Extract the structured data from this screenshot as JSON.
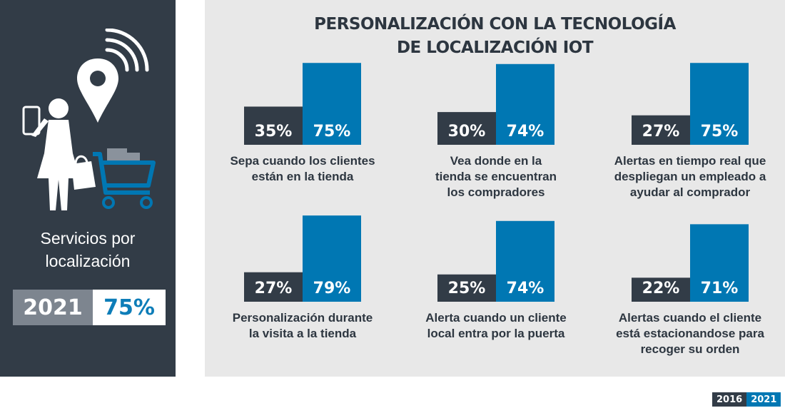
{
  "chart_data": {
    "type": "bar",
    "title": "PERSONALIZACIÓN CON LA TECNOLOGÍA DE LOCALIZACIÓN IOT",
    "title_lines": [
      "PERSONALIZACIÓN CON LA TECNOLOGÍA",
      "DE LOCALIZACIÓN IOT"
    ],
    "legend": [
      "2016",
      "2021"
    ],
    "legend_placement": "bottom-right",
    "colors": {
      "2016": "#323c47",
      "2021": "#0077b3"
    },
    "ylim": [
      0,
      100
    ],
    "grid": false,
    "groups": [
      {
        "label_lines": [
          "Sepa cuando los clientes",
          "están en la tienda"
        ],
        "values": [
          35,
          75
        ],
        "labels": [
          "35%",
          "75%"
        ]
      },
      {
        "label_lines": [
          "Vea donde en la",
          "tienda se encuentran",
          "los compradores"
        ],
        "values": [
          30,
          74
        ],
        "labels": [
          "30%",
          "74%"
        ]
      },
      {
        "label_lines": [
          "Alertas en tiempo real que",
          "despliegan un empleado a",
          "ayudar al comprador"
        ],
        "values": [
          27,
          75
        ],
        "labels": [
          "27%",
          "75%"
        ]
      },
      {
        "label_lines": [
          "Personalización durante",
          "la visita a la tienda"
        ],
        "values": [
          27,
          79
        ],
        "labels": [
          "27%",
          "79%"
        ]
      },
      {
        "label_lines": [
          "Alerta cuando un cliente",
          "local entra por la puerta"
        ],
        "values": [
          25,
          74
        ],
        "labels": [
          "25%",
          "74%"
        ]
      },
      {
        "label_lines": [
          "Alertas cuando el cliente",
          "está estacionandose para",
          "recoger su orden"
        ],
        "values": [
          22,
          71
        ],
        "labels": [
          "22%",
          "71%"
        ]
      }
    ]
  },
  "sidebar": {
    "label_lines": [
      "Servicios por",
      "localización"
    ],
    "year": "2021",
    "value": "75%",
    "icons": [
      "wifi-signal-icon",
      "location-pin-icon",
      "smartphone-icon",
      "shopper-icon",
      "shopping-bag-icon",
      "shopping-cart-icon"
    ]
  }
}
